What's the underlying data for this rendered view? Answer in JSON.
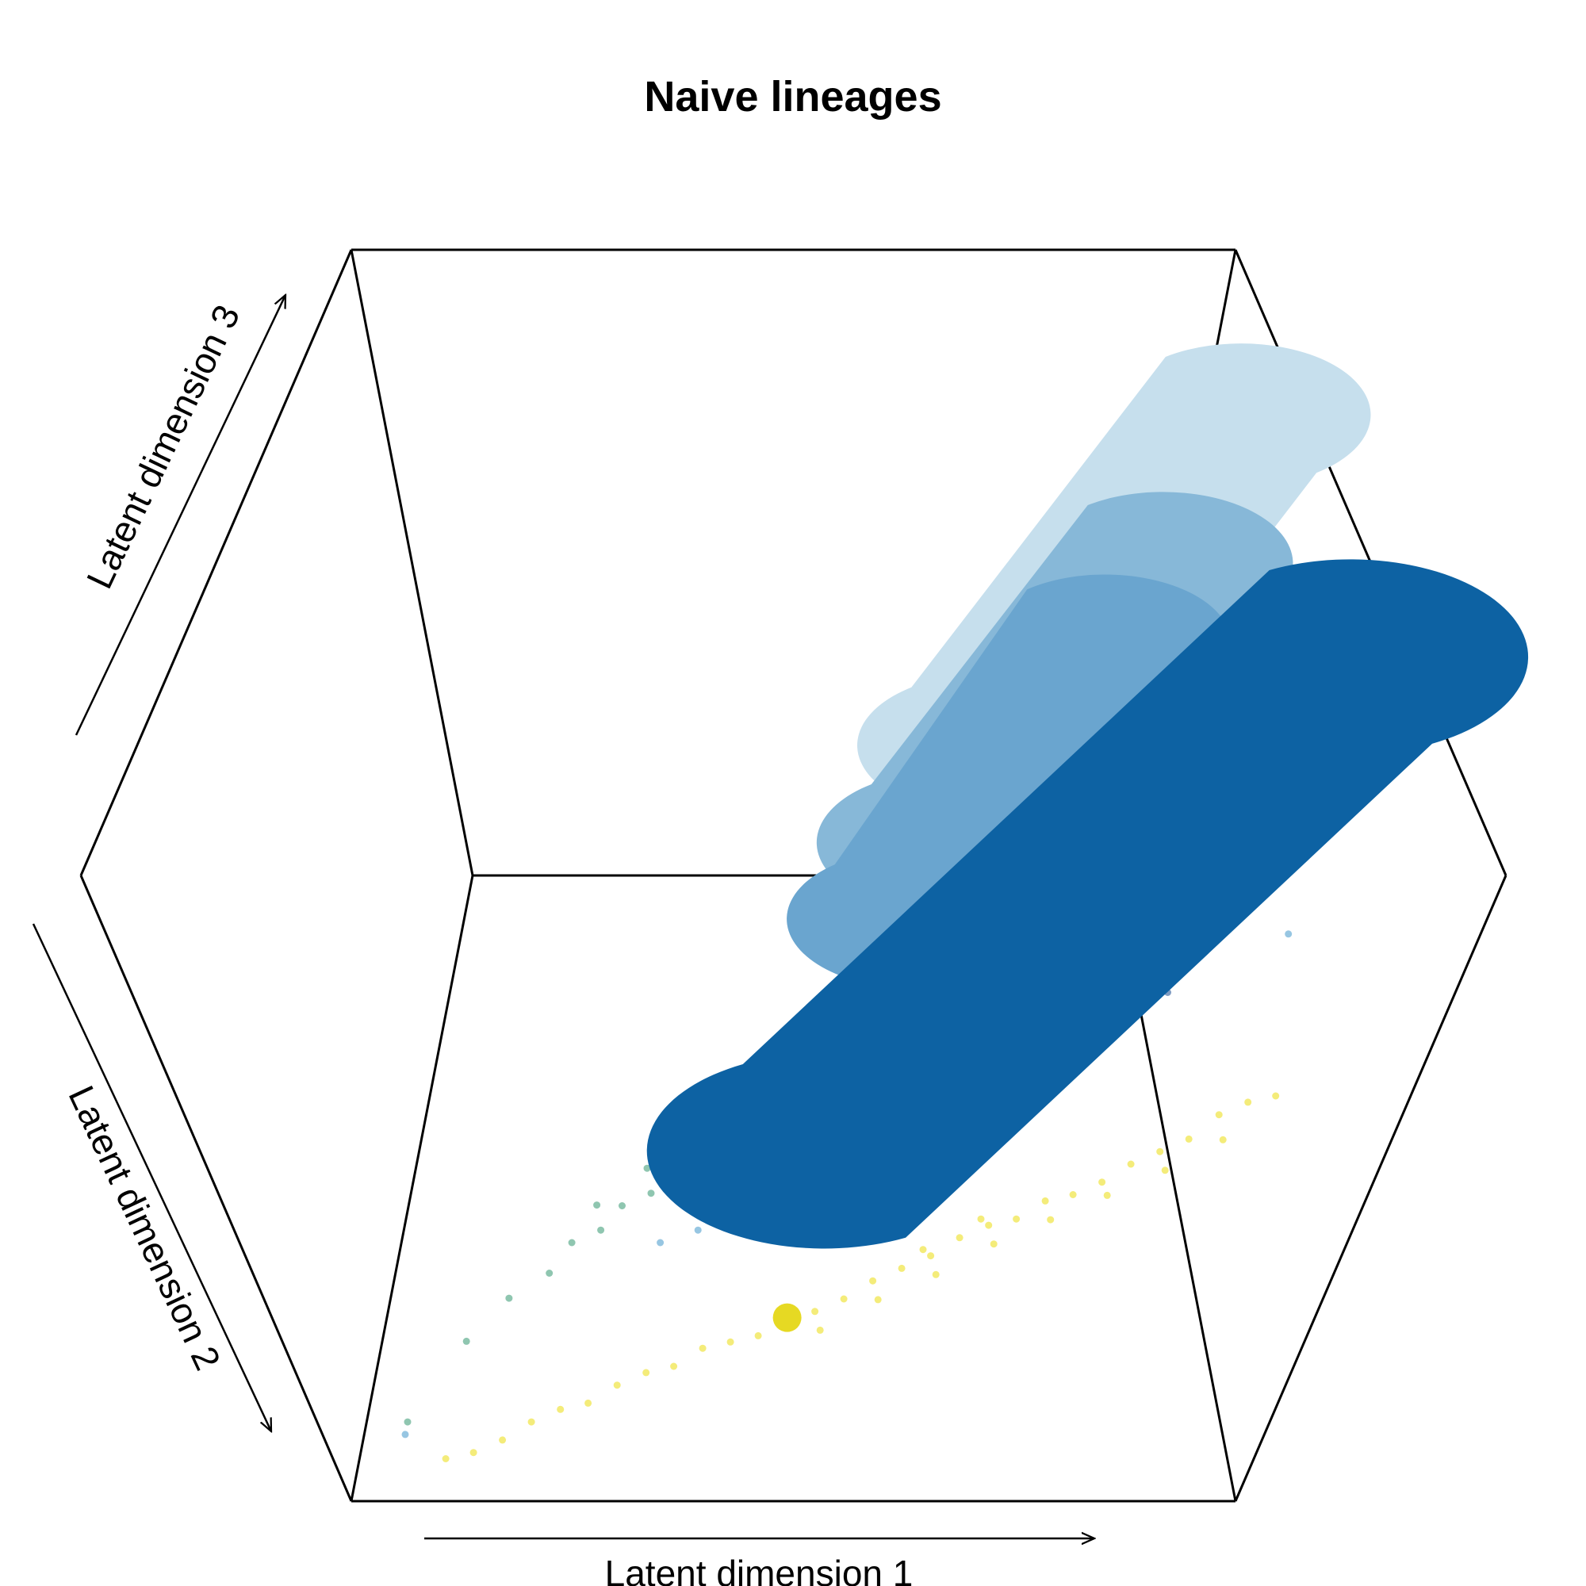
{
  "chart_data": {
    "type": "scatter",
    "projection": "3d",
    "title": "Naive lineages",
    "xlabel": "Latent dimension 1",
    "ylabel": "Latent dimension 2",
    "zlabel": "Latent dimension 3",
    "grid": false,
    "legend": "none",
    "series": [
      {
        "kind": "points",
        "color": "#f0e442",
        "points": [
          [
            0.1,
            0.05,
            0.02
          ],
          [
            0.13,
            0.06,
            0.02
          ],
          [
            0.16,
            0.08,
            0.02
          ],
          [
            0.19,
            0.1,
            0.03
          ],
          [
            0.22,
            0.12,
            0.03
          ],
          [
            0.25,
            0.13,
            0.03
          ],
          [
            0.28,
            0.15,
            0.04
          ],
          [
            0.31,
            0.17,
            0.04
          ],
          [
            0.34,
            0.18,
            0.04
          ],
          [
            0.37,
            0.2,
            0.05
          ],
          [
            0.4,
            0.21,
            0.05
          ],
          [
            0.43,
            0.22,
            0.05
          ],
          [
            0.46,
            0.23,
            0.06
          ],
          [
            0.49,
            0.25,
            0.06
          ],
          [
            0.52,
            0.27,
            0.06
          ],
          [
            0.55,
            0.29,
            0.07
          ],
          [
            0.58,
            0.31,
            0.07
          ],
          [
            0.61,
            0.33,
            0.07
          ],
          [
            0.64,
            0.35,
            0.08
          ],
          [
            0.67,
            0.37,
            0.08
          ],
          [
            0.7,
            0.38,
            0.08
          ],
          [
            0.73,
            0.4,
            0.09
          ],
          [
            0.76,
            0.41,
            0.09
          ],
          [
            0.79,
            0.43,
            0.09
          ],
          [
            0.82,
            0.45,
            0.1
          ],
          [
            0.85,
            0.47,
            0.1
          ],
          [
            0.88,
            0.49,
            0.1
          ],
          [
            0.91,
            0.52,
            0.11
          ],
          [
            0.94,
            0.54,
            0.11
          ],
          [
            0.97,
            0.55,
            0.11
          ],
          [
            0.5,
            0.22,
            0.06
          ],
          [
            0.56,
            0.26,
            0.07
          ],
          [
            0.62,
            0.3,
            0.07
          ],
          [
            0.68,
            0.34,
            0.08
          ],
          [
            0.74,
            0.37,
            0.09
          ],
          [
            0.8,
            0.4,
            0.1
          ],
          [
            0.86,
            0.44,
            0.1
          ],
          [
            0.92,
            0.48,
            0.11
          ],
          [
            0.6,
            0.34,
            0.07
          ],
          [
            0.66,
            0.38,
            0.08
          ]
        ]
      },
      {
        "kind": "points",
        "color": "#5fae8f",
        "points": [
          [
            0.05,
            0.1,
            0.03
          ],
          [
            0.1,
            0.22,
            0.04
          ],
          [
            0.14,
            0.28,
            0.05
          ],
          [
            0.18,
            0.32,
            0.05
          ],
          [
            0.2,
            0.36,
            0.06
          ],
          [
            0.23,
            0.38,
            0.06
          ],
          [
            0.25,
            0.41,
            0.07
          ],
          [
            0.28,
            0.43,
            0.07
          ],
          [
            0.3,
            0.46,
            0.08
          ],
          [
            0.32,
            0.48,
            0.08
          ],
          [
            0.34,
            0.5,
            0.09
          ],
          [
            0.36,
            0.52,
            0.09
          ],
          [
            0.38,
            0.55,
            0.1
          ],
          [
            0.4,
            0.57,
            0.1
          ],
          [
            0.27,
            0.47,
            0.07
          ],
          [
            0.31,
            0.52,
            0.08
          ],
          [
            0.35,
            0.56,
            0.09
          ],
          [
            0.22,
            0.42,
            0.06
          ],
          [
            0.29,
            0.49,
            0.07
          ],
          [
            0.33,
            0.54,
            0.09
          ]
        ]
      },
      {
        "kind": "points",
        "color": "#6baed6",
        "points": [
          [
            0.05,
            0.08,
            0.03
          ],
          [
            0.3,
            0.36,
            0.06
          ],
          [
            0.34,
            0.38,
            0.06
          ],
          [
            0.37,
            0.4,
            0.07
          ],
          [
            0.4,
            0.42,
            0.07
          ],
          [
            0.43,
            0.44,
            0.08
          ],
          [
            0.46,
            0.46,
            0.08
          ],
          [
            0.49,
            0.48,
            0.09
          ],
          [
            0.52,
            0.5,
            0.09
          ],
          [
            0.36,
            0.44,
            0.07
          ],
          [
            0.41,
            0.47,
            0.08
          ],
          [
            0.45,
            0.5,
            0.09
          ],
          [
            0.95,
            0.8,
            0.12
          ]
        ]
      },
      {
        "kind": "points",
        "color": "#4a72a8",
        "points": [
          [
            0.3,
            0.55,
            0.08
          ],
          [
            0.33,
            0.58,
            0.09
          ],
          [
            0.36,
            0.6,
            0.09
          ],
          [
            0.44,
            0.7,
            0.12
          ],
          [
            0.48,
            0.74,
            0.13
          ],
          [
            0.52,
            0.6,
            0.12
          ],
          [
            0.7,
            0.66,
            0.14
          ],
          [
            0.83,
            0.68,
            0.15
          ]
        ]
      },
      {
        "kind": "tube",
        "name": "",
        "color": "#c6dfed",
        "from": [
          0.62,
          0.72,
          0.55
        ],
        "to": [
          0.88,
          0.92,
          0.92
        ]
      },
      {
        "kind": "tube",
        "name": "",
        "color": "#87b8d8",
        "from": [
          0.58,
          0.68,
          0.42
        ],
        "to": [
          0.8,
          0.86,
          0.72
        ]
      },
      {
        "kind": "tube",
        "name": "",
        "color": "#6aa5cf",
        "from": [
          0.55,
          0.62,
          0.35
        ],
        "to": [
          0.74,
          0.82,
          0.62
        ]
      },
      {
        "kind": "tube",
        "name": "",
        "color": "#0d62a3",
        "from": [
          0.48,
          0.4,
          0.18
        ],
        "to": [
          1.0,
          0.95,
          0.45
        ]
      }
    ],
    "xlim": [
      0,
      1
    ],
    "ylim": [
      0,
      1
    ],
    "zlim": [
      0,
      1
    ]
  }
}
